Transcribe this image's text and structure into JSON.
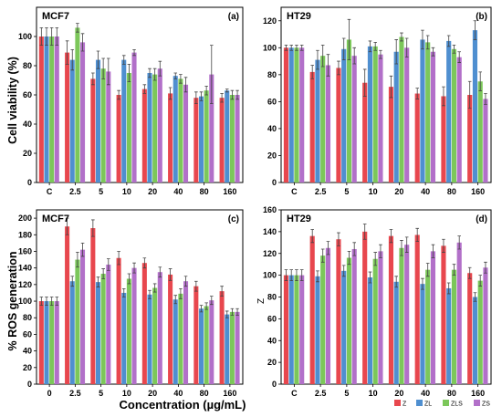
{
  "figure": {
    "xlabel": "Concentration (µg/mL)",
    "legend": [
      {
        "name": "Z",
        "color": "#e8474e"
      },
      {
        "name": "ZL",
        "color": "#4f8fd0"
      },
      {
        "name": "ZLS",
        "color": "#7cc75a"
      },
      {
        "name": "ZS",
        "color": "#b270c9"
      }
    ]
  },
  "chart_data": [
    {
      "type": "bar",
      "panel": "(a)",
      "title": "MCF7",
      "ylabel": "Cell viability (%)",
      "categories": [
        "C",
        "2.5",
        "5",
        "10",
        "20",
        "40",
        "80",
        "160"
      ],
      "ylim": [
        0,
        120
      ],
      "yticks": [
        0,
        20,
        40,
        60,
        80,
        100
      ],
      "series": [
        {
          "name": "Z",
          "values": [
            100,
            89,
            71,
            60,
            64,
            61,
            58,
            58
          ],
          "errors": [
            6,
            8,
            4,
            3,
            3,
            4,
            4,
            3
          ]
        },
        {
          "name": "ZL",
          "values": [
            100,
            84,
            84,
            84,
            75,
            73,
            59,
            63
          ],
          "errors": [
            6,
            7,
            6,
            3,
            3,
            2,
            3,
            1
          ]
        },
        {
          "name": "ZLS",
          "values": [
            100,
            106,
            78,
            75,
            74,
            71,
            63,
            60
          ],
          "errors": [
            6,
            3,
            7,
            6,
            4,
            3,
            3,
            3
          ]
        },
        {
          "name": "ZS",
          "values": [
            100,
            96,
            76,
            89,
            78,
            67,
            74,
            60
          ],
          "errors": [
            6,
            6,
            9,
            2,
            5,
            5,
            20,
            3
          ]
        }
      ]
    },
    {
      "type": "bar",
      "panel": "(b)",
      "title": "HT29",
      "ylabel": "",
      "categories": [
        "C",
        "2.5",
        "5",
        "10",
        "20",
        "40",
        "80",
        "160"
      ],
      "ylim": [
        0,
        130
      ],
      "yticks": [
        0,
        20,
        40,
        60,
        80,
        100,
        120
      ],
      "series": [
        {
          "name": "Z",
          "values": [
            100,
            82,
            85,
            74,
            71,
            66,
            64,
            65
          ],
          "errors": [
            2,
            5,
            5,
            10,
            8,
            4,
            7,
            10
          ]
        },
        {
          "name": "ZL",
          "values": [
            100,
            91,
            99,
            101,
            97,
            106,
            105,
            113
          ],
          "errors": [
            2,
            7,
            8,
            4,
            9,
            7,
            4,
            7
          ]
        },
        {
          "name": "ZLS",
          "values": [
            100,
            94,
            106,
            101,
            108,
            104,
            99,
            75
          ],
          "errors": [
            2,
            8,
            15,
            3,
            3,
            5,
            3,
            7
          ]
        },
        {
          "name": "ZS",
          "values": [
            100,
            87,
            94,
            95,
            100,
            97,
            93,
            62
          ],
          "errors": [
            2,
            8,
            6,
            3,
            7,
            3,
            4,
            4
          ]
        }
      ]
    },
    {
      "type": "bar",
      "panel": "(c)",
      "title": "MCF7",
      "ylabel": "% ROS generation",
      "categories": [
        "0",
        "2.5",
        "5",
        "10",
        "20",
        "40",
        "80",
        "160"
      ],
      "ylim": [
        0,
        210
      ],
      "yticks": [
        0,
        20,
        40,
        60,
        80,
        100,
        120,
        140,
        160,
        180,
        200
      ],
      "series": [
        {
          "name": "Z",
          "values": [
            100,
            190,
            188,
            152,
            146,
            132,
            118,
            112
          ],
          "errors": [
            5,
            10,
            10,
            8,
            6,
            7,
            6,
            6
          ]
        },
        {
          "name": "ZL",
          "values": [
            100,
            124,
            123,
            110,
            108,
            102,
            91,
            84
          ],
          "errors": [
            5,
            6,
            6,
            5,
            5,
            5,
            4,
            4
          ]
        },
        {
          "name": "ZLS",
          "values": [
            100,
            150,
            133,
            127,
            116,
            109,
            94,
            87
          ],
          "errors": [
            5,
            9,
            6,
            6,
            5,
            6,
            4,
            4
          ]
        },
        {
          "name": "ZS",
          "values": [
            100,
            162,
            144,
            140,
            135,
            124,
            101,
            87
          ],
          "errors": [
            5,
            8,
            7,
            6,
            6,
            6,
            5,
            4
          ]
        }
      ]
    },
    {
      "type": "bar",
      "panel": "(d)",
      "title": "HT29",
      "ylabel": "Z",
      "categories": [
        "C",
        "2.5",
        "5",
        "10",
        "20",
        "40",
        "80",
        "160"
      ],
      "ylim": [
        0,
        160
      ],
      "yticks": [
        0,
        20,
        40,
        60,
        80,
        100,
        120,
        140,
        160
      ],
      "series": [
        {
          "name": "Z",
          "values": [
            100,
            136,
            133,
            140,
            136,
            137,
            127,
            102
          ],
          "errors": [
            5,
            6,
            6,
            7,
            6,
            6,
            6,
            5
          ]
        },
        {
          "name": "ZL",
          "values": [
            100,
            99,
            104,
            98,
            94,
            92,
            88,
            80
          ],
          "errors": [
            5,
            5,
            5,
            5,
            5,
            5,
            5,
            4
          ]
        },
        {
          "name": "ZLS",
          "values": [
            100,
            118,
            116,
            115,
            125,
            105,
            105,
            95
          ],
          "errors": [
            5,
            6,
            6,
            6,
            7,
            6,
            5,
            5
          ]
        },
        {
          "name": "ZS",
          "values": [
            100,
            125,
            124,
            122,
            128,
            122,
            130,
            107
          ],
          "errors": [
            5,
            6,
            6,
            6,
            7,
            6,
            6,
            5
          ]
        }
      ]
    }
  ]
}
